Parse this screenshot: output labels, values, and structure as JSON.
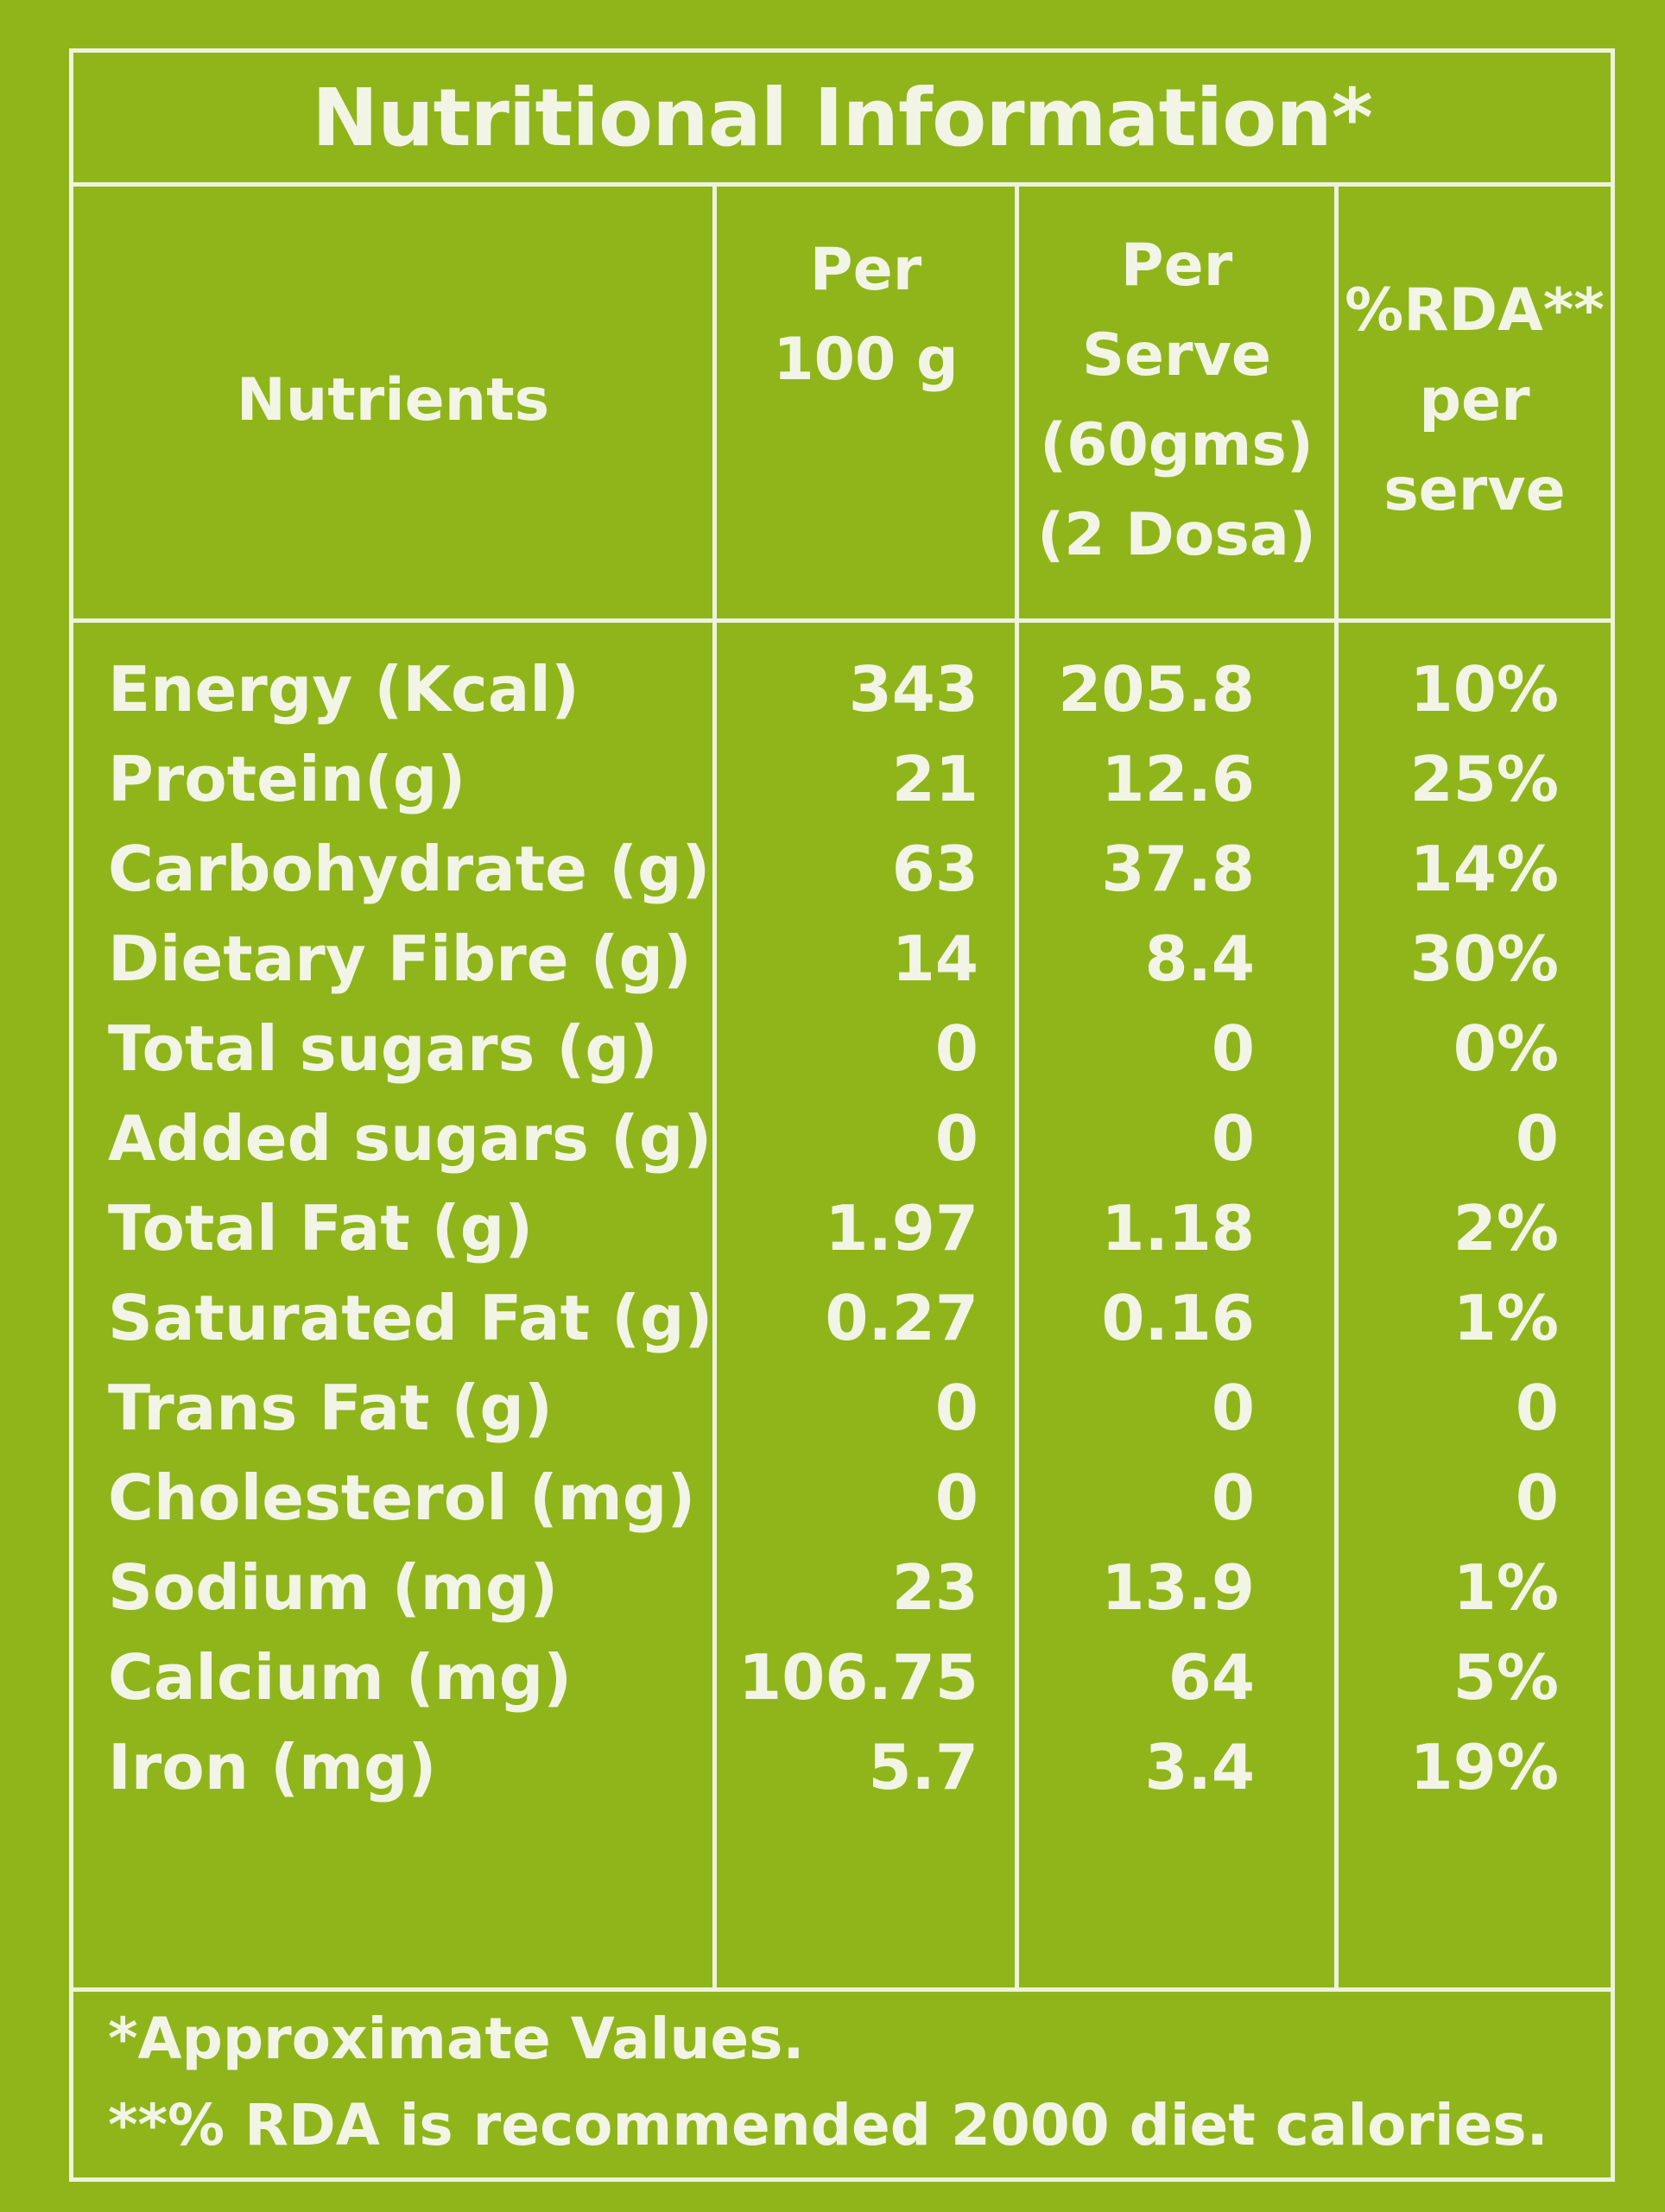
{
  "title": "Nutritional Information*",
  "headers": {
    "nutrients": "Nutrients",
    "per100_line1": "Per",
    "per100_line2": "100 g",
    "serve_line1": "Per",
    "serve_line2": "Serve",
    "serve_line3": "(60gms)",
    "serve_line4": "(2 Dosa)",
    "rda_line1": "%RDA**",
    "rda_line2": "per",
    "rda_line3": "serve"
  },
  "rows": [
    {
      "name": "Energy (Kcal)",
      "per100": "343",
      "serve": "205.8",
      "rda": "10%"
    },
    {
      "name": "Protein(g)",
      "per100": "21",
      "serve": "12.6",
      "rda": "25%"
    },
    {
      "name": "Carbohydrate (g)",
      "per100": "63",
      "serve": "37.8",
      "rda": "14%"
    },
    {
      "name": "Dietary Fibre (g)",
      "per100": "14",
      "serve": "8.4",
      "rda": "30%"
    },
    {
      "name": "Total sugars (g)",
      "per100": "0",
      "serve": "0",
      "rda": "0%"
    },
    {
      "name": "Added sugars (g)",
      "per100": "0",
      "serve": "0",
      "rda": "0"
    },
    {
      "name": "Total Fat (g)",
      "per100": "1.97",
      "serve": "1.18",
      "rda": "2%"
    },
    {
      "name": "Saturated Fat (g)",
      "per100": "0.27",
      "serve": "0.16",
      "rda": "1%"
    },
    {
      "name": "Trans Fat (g)",
      "per100": "0",
      "serve": "0",
      "rda": "0"
    },
    {
      "name": "Cholesterol (mg)",
      "per100": "0",
      "serve": "0",
      "rda": "0"
    },
    {
      "name": "Sodium (mg)",
      "per100": "23",
      "serve": "13.9",
      "rda": "1%"
    },
    {
      "name": "Calcium (mg)",
      "per100": "106.75",
      "serve": "64",
      "rda": "5%"
    },
    {
      "name": "Iron (mg)",
      "per100": "5.7",
      "serve": "3.4",
      "rda": "19%"
    }
  ],
  "footnotes": {
    "line1": "*Approximate Values.",
    "line2": "**% RDA is recommended 2000 diet calories."
  }
}
